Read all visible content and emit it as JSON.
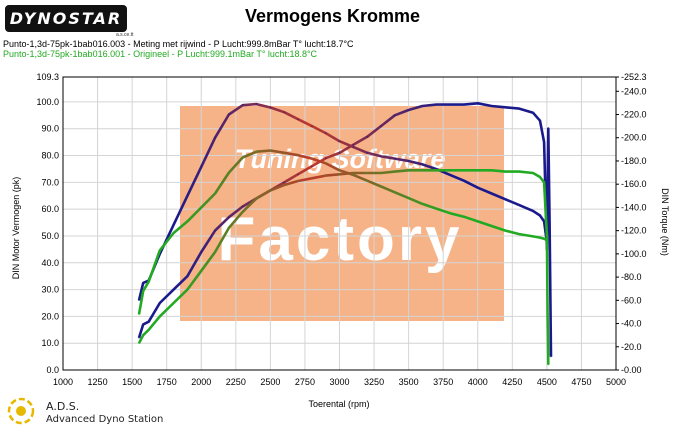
{
  "header": {
    "logo_text": "DYNOSTAR",
    "logo_subtext": "a.s.ce.tt",
    "title": "Vermogens Kromme"
  },
  "runs": [
    {
      "label": "Punto-1,3d-75pk-1bab016.003 - Meting met rijwind  - P Lucht:999.8mBar T° lucht:18.7°C",
      "color": "#000000"
    },
    {
      "label": "Punto-1,3d-75pk-1bab016.001 - Origineel  - P Lucht:999.1mBar T° lucht:18.8°C",
      "color": "#22aa22"
    }
  ],
  "watermark": {
    "line1": "Tuning Software",
    "line2": "Factory",
    "color": "#f4a06a"
  },
  "footer": {
    "title": "A.D.S.",
    "subtitle": "Advanced Dyno Station"
  },
  "chart_data": {
    "type": "line",
    "xlabel": "Toerental (rpm)",
    "ylabel_left": "DIN Motor Vermogen (pk)",
    "ylabel_right": "DIN Torque (Nm)",
    "xlim": [
      1000,
      5000
    ],
    "x_ticks": [
      1000,
      1250,
      1500,
      1750,
      2000,
      2250,
      2500,
      2750,
      3000,
      3250,
      3500,
      3750,
      4000,
      4250,
      4500,
      4750,
      5000
    ],
    "ylim_left": [
      0,
      109.3
    ],
    "y_ticks_left": [
      "0.0",
      "10.0",
      "20.0",
      "30.0",
      "40.0",
      "50.0",
      "60.0",
      "70.0",
      "80.0",
      "90.0",
      "100.0",
      "109.3"
    ],
    "ylim_right": [
      0,
      252.3
    ],
    "y_ticks_right": [
      "0.00",
      "20.0",
      "40.0",
      "60.0",
      "80.0",
      "100.0",
      "120.0",
      "140.0",
      "160.0",
      "180.0",
      "200.0",
      "220.0",
      "240.0",
      "252.3"
    ],
    "grid": true,
    "series": [
      {
        "color": "#1a1a8c",
        "fade_color": "#c0392b",
        "axis": "left",
        "x": [
          1550,
          1580,
          1620,
          1700,
          1800,
          1900,
          2000,
          2100,
          2200,
          2300,
          2400,
          2500,
          2600,
          2700,
          2800,
          2900,
          3000,
          3100,
          3200,
          3300,
          3400,
          3500,
          3600,
          3700,
          3800,
          3900,
          4000,
          4100,
          4200,
          4300,
          4400,
          4450,
          4480,
          4500,
          4510,
          4520,
          4530
        ],
        "y": [
          12,
          17,
          18,
          25,
          30,
          35,
          44,
          52,
          57,
          61,
          64,
          67,
          70,
          73,
          76,
          79,
          81,
          84,
          87,
          91,
          95,
          97,
          98.5,
          99,
          99,
          99,
          99.5,
          98.5,
          98,
          97.5,
          96,
          93,
          85,
          45,
          90,
          55,
          5
        ]
      },
      {
        "color": "#1a1a8c",
        "fade_color": "#c0392b",
        "axis": "right",
        "x": [
          1550,
          1580,
          1620,
          1700,
          1800,
          1900,
          2000,
          2100,
          2200,
          2300,
          2400,
          2500,
          2600,
          2700,
          2800,
          2900,
          3000,
          3100,
          3200,
          3300,
          3400,
          3500,
          3600,
          3700,
          3800,
          3900,
          4000,
          4100,
          4200,
          4300,
          4400,
          4450,
          4480,
          4500
        ],
        "y": [
          60,
          75,
          77,
          100,
          125,
          150,
          175,
          200,
          220,
          228,
          229,
          226,
          222,
          216,
          210,
          204,
          197,
          192,
          187,
          184,
          182,
          180,
          177,
          173,
          168,
          163,
          157,
          152,
          147,
          142,
          137,
          133,
          128,
          110
        ]
      },
      {
        "color": "#22aa22",
        "fade_color": "#c0392b",
        "axis": "left",
        "x": [
          1550,
          1580,
          1620,
          1700,
          1800,
          1900,
          2000,
          2100,
          2200,
          2300,
          2400,
          2500,
          2600,
          2700,
          2800,
          2900,
          3000,
          3100,
          3200,
          3300,
          3400,
          3500,
          3600,
          3700,
          3800,
          3900,
          4000,
          4100,
          4200,
          4300,
          4400,
          4450,
          4480,
          4500,
          4505,
          4510
        ],
        "y": [
          10,
          13,
          15,
          20,
          25,
          30,
          37,
          44,
          53,
          59,
          64,
          67,
          69,
          70.5,
          71.5,
          72.5,
          73,
          73.5,
          73.5,
          73.5,
          74,
          74.5,
          74.5,
          74.5,
          74.5,
          74.5,
          74.5,
          74.5,
          74,
          74,
          73.5,
          72,
          70,
          50,
          20,
          2
        ]
      },
      {
        "color": "#22aa22",
        "fade_color": "#c0392b",
        "axis": "right",
        "x": [
          1550,
          1580,
          1620,
          1700,
          1800,
          1900,
          2000,
          2100,
          2200,
          2300,
          2400,
          2500,
          2600,
          2700,
          2800,
          2900,
          3000,
          3100,
          3200,
          3300,
          3400,
          3500,
          3600,
          3700,
          3800,
          3900,
          4000,
          4100,
          4200,
          4300,
          4400,
          4450,
          4480,
          4500
        ],
        "y": [
          48,
          68,
          76,
          103,
          118,
          128,
          140,
          152,
          170,
          183,
          188,
          189,
          187,
          185,
          182,
          178,
          172,
          168,
          163,
          158,
          153,
          148,
          143,
          139,
          135,
          132,
          128,
          124,
          120,
          117,
          115,
          114,
          113,
          112
        ]
      }
    ]
  }
}
